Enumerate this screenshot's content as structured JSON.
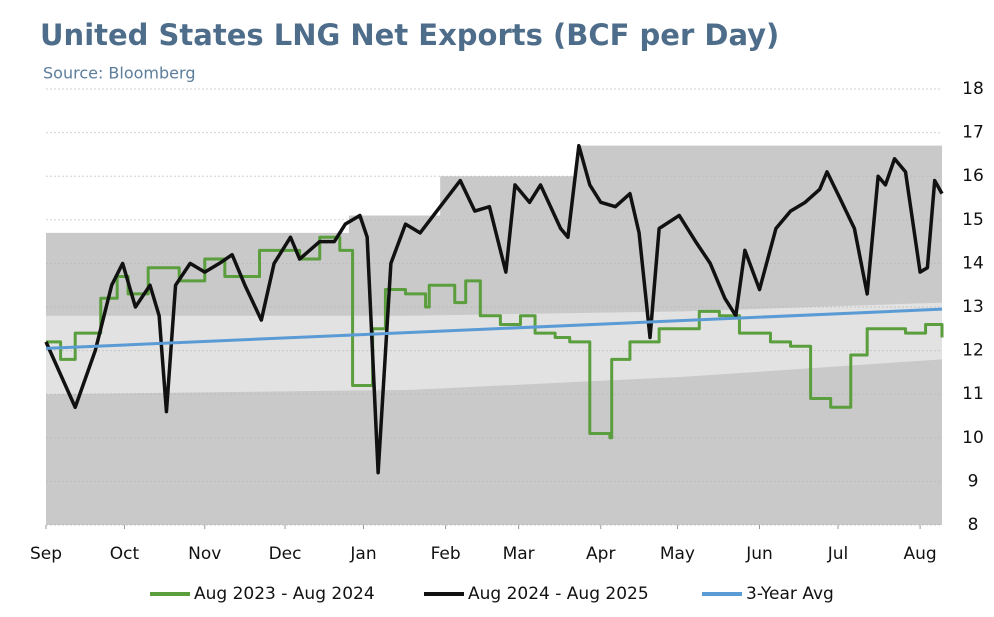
{
  "chart_data": {
    "type": "line",
    "title": "United States LNG Net Exports (BCF per Day)",
    "subtitle": "Source: Bloomberg",
    "xlim": [
      0,
      49.1
    ],
    "xticks": [
      {
        "value": 0,
        "label": "Sep"
      },
      {
        "value": 4.3,
        "label": "Oct"
      },
      {
        "value": 8.7,
        "label": "Nov"
      },
      {
        "value": 13.1,
        "label": "Dec"
      },
      {
        "value": 17.4,
        "label": "Jan"
      },
      {
        "value": 21.9,
        "label": "Feb"
      },
      {
        "value": 25.9,
        "label": "Mar"
      },
      {
        "value": 30.4,
        "label": "Apr"
      },
      {
        "value": 34.6,
        "label": "May"
      },
      {
        "value": 39.1,
        "label": "Jun"
      },
      {
        "value": 43.4,
        "label": "Jul"
      },
      {
        "value": 47.9,
        "label": "Aug"
      }
    ],
    "ylim": [
      8,
      18
    ],
    "yticks": [
      8,
      9,
      10,
      11,
      12,
      13,
      14,
      15,
      16,
      17,
      18
    ],
    "range_max": {
      "color": "#c9c9c9",
      "x": [
        0,
        16.6,
        16.6,
        21.6,
        21.6,
        29.1,
        29.1,
        49.1
      ],
      "values": [
        14.7,
        14.7,
        15.1,
        15.1,
        16.0,
        16.0,
        16.7,
        16.7
      ]
    },
    "range_band": {
      "color": "#e2e2e2",
      "x": [
        0,
        20,
        35,
        49.1
      ],
      "low": [
        11.0,
        11.1,
        11.4,
        11.8
      ],
      "high": [
        12.8,
        12.8,
        12.9,
        13.1
      ]
    },
    "series": [
      {
        "name": "Aug 2023 - Aug 2024",
        "color": "#5a9e3e",
        "step": true,
        "x": [
          0,
          0.8,
          1.6,
          2.7,
          3.0,
          3.5,
          3.9,
          4.5,
          5.6,
          6.7,
          7.3,
          8.7,
          9.8,
          11.7,
          12.8,
          13.9,
          15.0,
          16.1,
          16.8,
          17.8,
          17.9,
          18.6,
          19.7,
          20.8,
          21.0,
          22.4,
          23.0,
          23.8,
          24.9,
          26.0,
          26.8,
          27.9,
          28.7,
          29.8,
          30.9,
          31.0,
          32.0,
          33.6,
          35.8,
          36.9,
          38.0,
          39.7,
          40.8,
          41.9,
          43.0,
          44.1,
          45.0,
          47.1,
          48.2,
          49.1
        ],
        "values": [
          12.2,
          11.8,
          12.4,
          12.4,
          13.2,
          13.2,
          13.7,
          13.3,
          13.9,
          13.9,
          13.6,
          14.1,
          13.7,
          14.3,
          14.3,
          14.1,
          14.6,
          14.3,
          11.2,
          11.2,
          12.5,
          13.4,
          13.3,
          13.0,
          13.5,
          13.1,
          13.6,
          12.8,
          12.6,
          12.8,
          12.4,
          12.3,
          12.2,
          10.1,
          10.0,
          11.8,
          12.2,
          12.5,
          12.9,
          12.8,
          12.4,
          12.2,
          12.1,
          10.9,
          10.7,
          11.9,
          12.5,
          12.4,
          12.6,
          12.3
        ]
      },
      {
        "name": "Aug 2024 - Aug 2025",
        "color": "#111111",
        "step": false,
        "x": [
          0,
          1.6,
          2.7,
          3.6,
          4.2,
          4.9,
          5.7,
          6.2,
          6.6,
          7.1,
          7.9,
          8.7,
          9.5,
          10.2,
          10.9,
          11.8,
          12.5,
          13.4,
          13.9,
          15.0,
          15.8,
          16.4,
          17.2,
          17.6,
          18.2,
          18.9,
          19.7,
          20.5,
          21.6,
          22.7,
          23.5,
          24.3,
          25.2,
          25.7,
          26.5,
          27.1,
          28.2,
          28.6,
          29.2,
          29.8,
          30.4,
          31.2,
          32.0,
          32.5,
          33.1,
          33.6,
          34.7,
          35.6,
          36.4,
          37.2,
          37.8,
          38.3,
          39.1,
          40.0,
          40.8,
          41.6,
          42.4,
          42.8,
          43.5,
          44.3,
          45.0,
          45.6,
          46.0,
          46.5,
          47.1,
          47.9,
          48.3,
          48.7,
          49.1
        ],
        "values": [
          12.2,
          10.7,
          12.0,
          13.5,
          14.0,
          13.0,
          13.5,
          12.8,
          10.6,
          13.5,
          14.0,
          13.8,
          14.0,
          14.2,
          13.5,
          12.7,
          14.0,
          14.6,
          14.1,
          14.5,
          14.5,
          14.9,
          15.1,
          14.6,
          9.2,
          14.0,
          14.9,
          14.7,
          15.3,
          15.9,
          15.2,
          15.3,
          13.8,
          15.8,
          15.4,
          15.8,
          14.8,
          14.6,
          16.7,
          15.8,
          15.4,
          15.3,
          15.6,
          14.7,
          12.3,
          14.8,
          15.1,
          14.5,
          14.0,
          13.2,
          12.8,
          14.3,
          13.4,
          14.8,
          15.2,
          15.4,
          15.7,
          16.1,
          15.5,
          14.8,
          13.3,
          16.0,
          15.8,
          16.4,
          16.1,
          13.8,
          13.9,
          15.9,
          15.6
        ]
      },
      {
        "name": "3-Year Avg",
        "color": "#5b9bd5",
        "step": false,
        "x": [
          0,
          49.1
        ],
        "values": [
          12.05,
          12.95
        ]
      }
    ]
  }
}
